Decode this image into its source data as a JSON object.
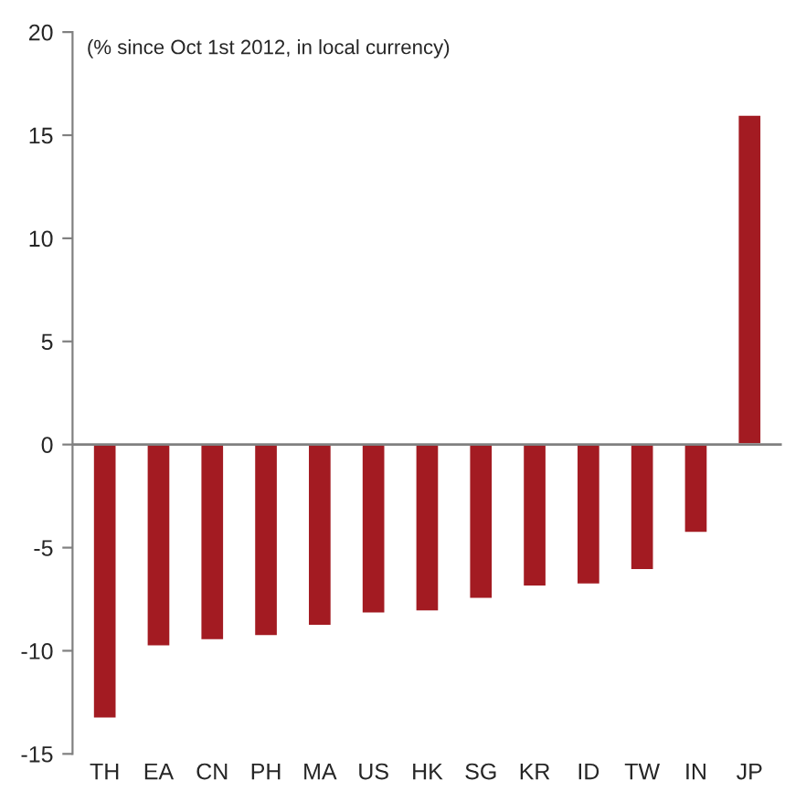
{
  "chart_data": {
    "type": "bar",
    "annotations": [
      "(% since Oct 1st 2012, in local currency)"
    ],
    "categories": [
      "TH",
      "EA",
      "CN",
      "PH",
      "MA",
      "US",
      "HK",
      "SG",
      "KR",
      "ID",
      "TW",
      "IN",
      "JP"
    ],
    "values": [
      -13.3,
      -9.8,
      -9.5,
      -9.3,
      -8.8,
      -8.2,
      -8.1,
      -7.5,
      -6.9,
      -6.8,
      -6.1,
      -4.3,
      16.0
    ],
    "color": "#a31b22",
    "ylim": [
      -15,
      20
    ],
    "yticks": [
      -15,
      -10,
      -5,
      0,
      5,
      10,
      15,
      20
    ],
    "ref_lines": [
      {
        "axis": "y",
        "value": 0,
        "color": "#808080"
      }
    ],
    "grid": false,
    "legend": false
  }
}
